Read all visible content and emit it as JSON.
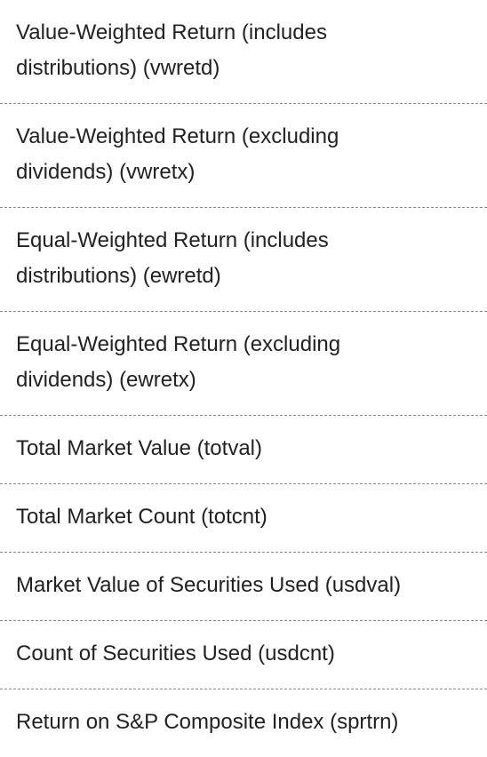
{
  "variables": {
    "items": [
      {
        "label": "Value-Weighted Return (includes distributions) (vwretd)"
      },
      {
        "label": "Value-Weighted Return (excluding dividends) (vwretx)"
      },
      {
        "label": "Equal-Weighted Return (includes distributions) (ewretd)"
      },
      {
        "label": "Equal-Weighted Return (excluding dividends) (ewretx)"
      },
      {
        "label": "Total Market Value (totval)"
      },
      {
        "label": "Total Market Count (totcnt)"
      },
      {
        "label": "Market Value of Securities Used (usdval)"
      },
      {
        "label": "Count of Securities Used (usdcnt)"
      },
      {
        "label": "Return on S&P Composite Index (sprtrn)"
      }
    ]
  }
}
